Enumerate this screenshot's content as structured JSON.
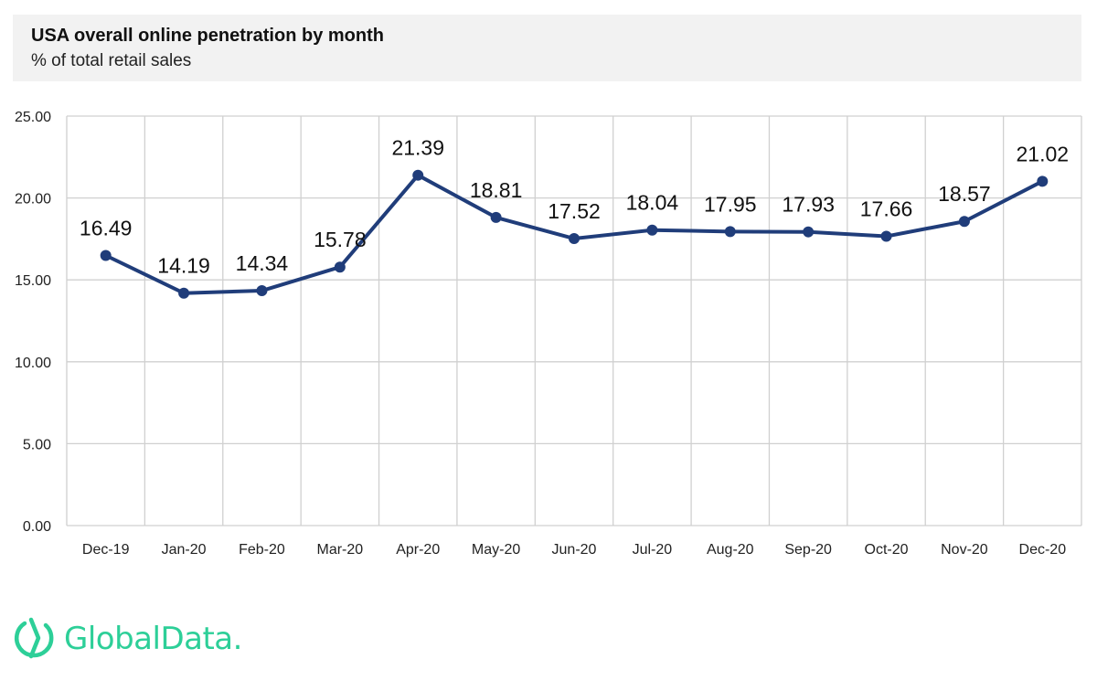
{
  "header": {
    "title": "USA overall online penetration by month",
    "subtitle": "% of total retail sales"
  },
  "brand": {
    "name": "GlobalData.",
    "color": "#2dcf98"
  },
  "colors": {
    "series": "#203d7a",
    "grid": "#d0d0d0",
    "header_bg": "#f2f2f2"
  },
  "chart_data": {
    "type": "line",
    "title": "USA overall online penetration by month",
    "subtitle": "% of total retail sales",
    "xlabel": "",
    "ylabel": "",
    "categories": [
      "Dec-19",
      "Jan-20",
      "Feb-20",
      "Mar-20",
      "Apr-20",
      "May-20",
      "Jun-20",
      "Jul-20",
      "Aug-20",
      "Sep-20",
      "Oct-20",
      "Nov-20",
      "Dec-20"
    ],
    "values": [
      16.49,
      14.19,
      14.34,
      15.78,
      21.39,
      18.81,
      17.52,
      18.04,
      17.95,
      17.93,
      17.66,
      18.57,
      21.02
    ],
    "data_labels": [
      "16.49",
      "14.19",
      "14.34",
      "15.78",
      "21.39",
      "18.81",
      "17.52",
      "18.04",
      "17.95",
      "17.93",
      "17.66",
      "18.57",
      "21.02"
    ],
    "ylim": [
      0,
      25
    ],
    "yticks": [
      "0.00",
      "5.00",
      "10.00",
      "15.00",
      "20.00",
      "25.00"
    ],
    "grid": true,
    "legend": "none"
  }
}
